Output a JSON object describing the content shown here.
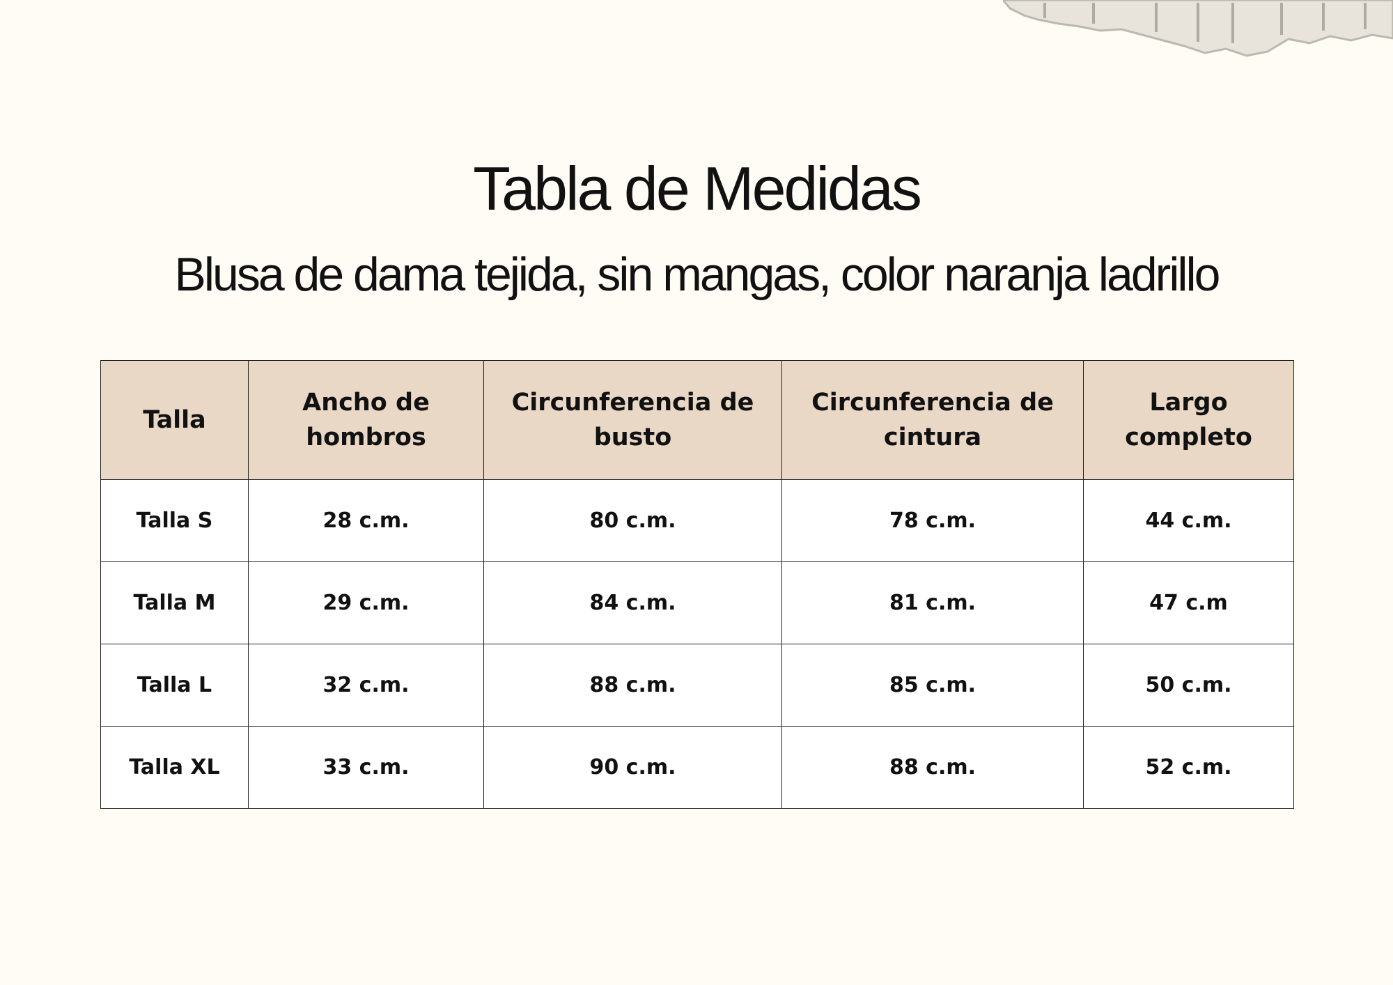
{
  "header": {
    "title": "Tabla de Medidas",
    "subtitle": "Blusa de dama tejida, sin mangas, color naranja ladrillo"
  },
  "table": {
    "columns": [
      "Talla",
      "Ancho de hombros",
      "Circunferencia de busto",
      "Circunferencia de cintura",
      "Largo completo"
    ],
    "rows": [
      [
        "Talla S",
        "28 c.m.",
        "80 c.m.",
        "78 c.m.",
        "44 c.m."
      ],
      [
        "Talla M",
        "29 c.m.",
        "84 c.m.",
        "81 c.m.",
        "47 c.m"
      ],
      [
        "Talla L",
        "32 c.m.",
        "88 c.m.",
        "85 c.m.",
        "50 c.m."
      ],
      [
        "Talla XL",
        "33 c.m.",
        "90 c.m.",
        "88 c.m.",
        "52 c.m."
      ]
    ]
  }
}
